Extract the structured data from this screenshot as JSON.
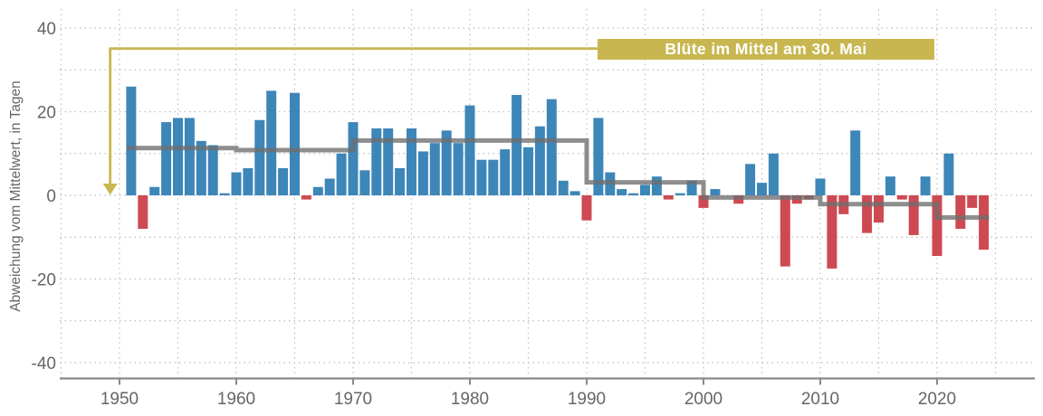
{
  "colors": {
    "positive": "#3D86B8",
    "negative": "#CD4A52",
    "trend": "#6E6E6E",
    "annotation": "#C8B751",
    "grid": "#BDBDBD",
    "axis": "#8A8A8A",
    "text": "#666666",
    "banner_text": "#FFFFFF"
  },
  "chart_data": {
    "type": "bar",
    "ylabel": "Abweichung vom Mittelwert, in Tagen",
    "annotation": {
      "label": "Blüte im Mittel am 30. Mai",
      "level": 35.1,
      "arrow_year": 1949.2,
      "arrow_head_level": 2.8,
      "arrow_tip_level": 0.1,
      "banner": {
        "from_year": 1990.95,
        "to_year": 2019.75,
        "top_level": 37.35,
        "bottom_level": 32.4
      }
    },
    "x_axis": {
      "ticks": [
        1950,
        1960,
        1970,
        1980,
        1990,
        2000,
        2010,
        2020
      ],
      "grid_years": [
        1945,
        1950,
        1955,
        1960,
        1965,
        1970,
        1975,
        1980,
        1985,
        1990,
        1995,
        2000,
        2005,
        2010,
        2015,
        2020,
        2025
      ]
    },
    "y_axis": {
      "ticks": [
        40,
        20,
        0,
        -20,
        -40
      ],
      "grid_values": [
        -40,
        -30,
        -20,
        -10,
        0,
        10,
        20,
        30,
        40
      ],
      "range": [
        -45,
        45
      ]
    },
    "years": [
      1951,
      1952,
      1953,
      1954,
      1955,
      1956,
      1957,
      1958,
      1959,
      1960,
      1961,
      1962,
      1963,
      1964,
      1965,
      1966,
      1967,
      1968,
      1969,
      1970,
      1971,
      1972,
      1973,
      1974,
      1975,
      1976,
      1977,
      1978,
      1979,
      1980,
      1981,
      1982,
      1983,
      1984,
      1985,
      1986,
      1987,
      1988,
      1989,
      1990,
      1991,
      1992,
      1993,
      1994,
      1995,
      1996,
      1997,
      1998,
      1999,
      2000,
      2001,
      2002,
      2003,
      2004,
      2005,
      2006,
      2007,
      2008,
      2009,
      2010,
      2011,
      2012,
      2013,
      2014,
      2015,
      2016,
      2017,
      2018,
      2019,
      2020,
      2021,
      2022,
      2023,
      2024
    ],
    "values": [
      26,
      -8,
      2,
      17.5,
      18.5,
      18.5,
      13,
      12,
      0.5,
      5.5,
      6.5,
      18,
      25,
      6.5,
      24.5,
      -1,
      2,
      4,
      10,
      17.5,
      6,
      16,
      16,
      6.5,
      16,
      10.5,
      12.5,
      15.5,
      12.5,
      21.5,
      8.5,
      8.5,
      11,
      24,
      11.5,
      16.5,
      23,
      3.5,
      1,
      -6,
      18.5,
      5.5,
      1.5,
      0.5,
      2.5,
      4.5,
      -1,
      0.5,
      3.5,
      -3,
      1.5,
      0,
      -2,
      7.5,
      3,
      10,
      -17,
      -2,
      -1,
      4,
      -17.5,
      -4.5,
      15.5,
      -9,
      -6.5,
      4.5,
      -1,
      -9.5,
      4.5,
      -14.5,
      10,
      -8,
      -3,
      -13
    ],
    "step_line": [
      {
        "from": 1950.6,
        "to": 1960,
        "value": 11.3
      },
      {
        "from": 1960,
        "to": 1970,
        "value": 10.8
      },
      {
        "from": 1970,
        "to": 1990,
        "value": 13.1
      },
      {
        "from": 1990,
        "to": 2000,
        "value": 3.1
      },
      {
        "from": 2000,
        "to": 2010,
        "value": -0.5
      },
      {
        "from": 2010,
        "to": 2020,
        "value": -2.1
      },
      {
        "from": 2020,
        "to": 2024.45,
        "value": -5.3
      }
    ]
  }
}
